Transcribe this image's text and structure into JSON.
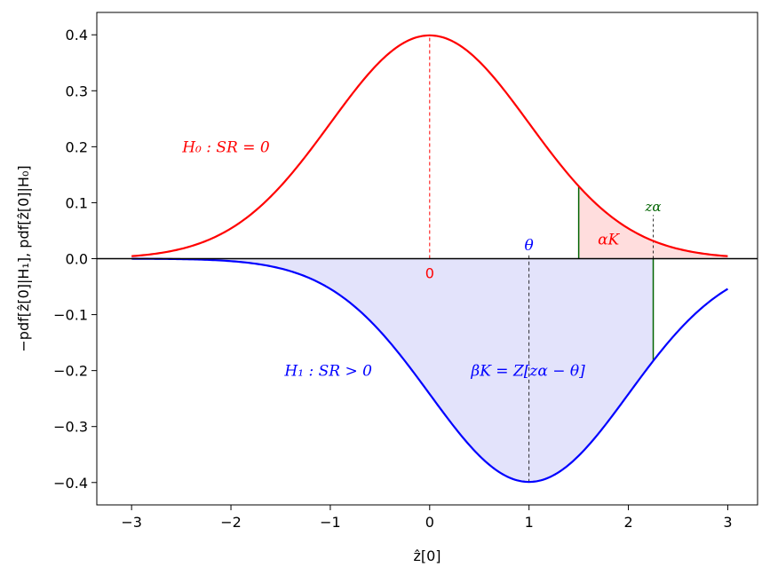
{
  "chart_data": {
    "type": "line",
    "title": "",
    "xlabel": "ẑ[0]",
    "ylabel": "−pdf[ẑ[0]|H₁], pdf[ẑ[0]|H₀]",
    "xlim": [
      -3.35,
      3.3
    ],
    "ylim": [
      -0.44,
      0.44
    ],
    "x_ticks": [
      -3,
      -2,
      -1,
      0,
      1,
      2,
      3
    ],
    "x_tick_labels": [
      "−3",
      "−2",
      "−1",
      "0",
      "1",
      "2",
      "3"
    ],
    "y_ticks": [
      0.4,
      0.3,
      0.2,
      0.1,
      0.0,
      -0.1,
      -0.2,
      -0.3,
      -0.4
    ],
    "y_tick_labels": [
      "0.4",
      "0.3",
      "0.2",
      "0.1",
      "0.0",
      "−0.1",
      "−0.2",
      "−0.3",
      "−0.4"
    ],
    "grid": false,
    "series": [
      {
        "curve": "h0",
        "color": "#ff0000",
        "mean": 0,
        "sign": 1,
        "x_range": [
          -3,
          3
        ]
      },
      {
        "curve": "h1",
        "color": "#0000ff",
        "mean": 1,
        "sign": -1,
        "x_range": [
          -3,
          3
        ]
      }
    ],
    "z_alpha": 2.25,
    "theta": 1,
    "alpha_region_start": 1.5,
    "beta_region_end": 2.25,
    "colors": {
      "h0": "#ff0000",
      "h1": "#0000ff",
      "alpha_fill": "#ffdddd",
      "beta_fill": "#e3e3fb",
      "threshold": "#006400"
    },
    "annotations": {
      "h0_label": "H₀ : SR = 0",
      "h1_label": "H₁ : SR > 0",
      "alpha_label": "αK",
      "beta_label": "βK = Z[zα − θ]",
      "z_alpha_label": "zα",
      "theta_label": "θ",
      "zero_label": "0"
    }
  }
}
